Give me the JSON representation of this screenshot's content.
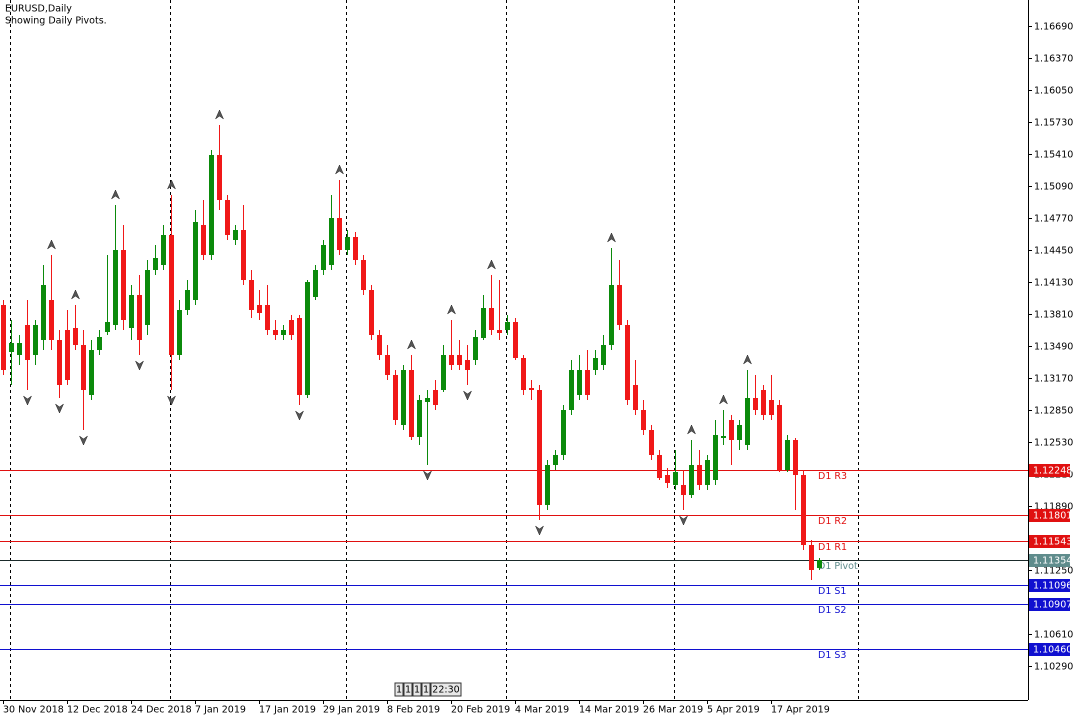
{
  "chart_data": {
    "type": "candlestick",
    "title": "EURUSD,Daily",
    "subtitle": "Showing Daily Pivots.",
    "up_color": "#0b8a0b",
    "down_color": "#f01818",
    "ylim": [
      1.0995,
      1.1695
    ],
    "yticks": [
      {
        "value": 1.1669,
        "label": "1.16690"
      },
      {
        "value": 1.1637,
        "label": "1.16370"
      },
      {
        "value": 1.1605,
        "label": "1.16050"
      },
      {
        "value": 1.1573,
        "label": "1.15730"
      },
      {
        "value": 1.1541,
        "label": "1.15410"
      },
      {
        "value": 1.1509,
        "label": "1.15090"
      },
      {
        "value": 1.1477,
        "label": "1.14770"
      },
      {
        "value": 1.1445,
        "label": "1.14450"
      },
      {
        "value": 1.1413,
        "label": "1.14130"
      },
      {
        "value": 1.1381,
        "label": "1.13810"
      },
      {
        "value": 1.1349,
        "label": "1.13490"
      },
      {
        "value": 1.1317,
        "label": "1.13170"
      },
      {
        "value": 1.1285,
        "label": "1.12850"
      },
      {
        "value": 1.1253,
        "label": "1.12530"
      },
      {
        "value": 1.1221,
        "label": "1.12210"
      },
      {
        "value": 1.1189,
        "label": "1.11890"
      },
      {
        "value": 1.1125,
        "label": "1.11250"
      },
      {
        "value": 1.1061,
        "label": "1.10610"
      },
      {
        "value": 1.1029,
        "label": "1.10290"
      }
    ],
    "pivots": [
      {
        "name": "D1 R3",
        "value": 1.12248,
        "value_label": "1.12248",
        "color": "#e01010"
      },
      {
        "name": "D1 R2",
        "value": 1.11801,
        "value_label": "1.11801",
        "color": "#e01010"
      },
      {
        "name": "D1 R1",
        "value": 1.11543,
        "value_label": "1.11543",
        "color": "#e01010"
      },
      {
        "name": "D1 Pivot",
        "value": 1.11354,
        "value_label": "1.11354",
        "color": "#5f8c8c"
      },
      {
        "name": "D1 S1",
        "value": 1.11096,
        "value_label": "1.11096",
        "color": "#1010d0"
      },
      {
        "name": "D1 S2",
        "value": 1.10907,
        "value_label": "1.10907",
        "color": "#1010d0"
      },
      {
        "name": "D1 S3",
        "value": 1.1046,
        "value_label": "1.10460",
        "color": "#1010d0"
      }
    ],
    "timer_labels": [
      "1",
      "1",
      "1",
      "1",
      "22:30"
    ],
    "categories": [
      "30 Nov 2018",
      null,
      null,
      null,
      null,
      null,
      null,
      null,
      "12 Dec 2018",
      null,
      null,
      null,
      null,
      null,
      null,
      null,
      "24 Dec 2018",
      null,
      null,
      null,
      null,
      null,
      null,
      null,
      "7 Jan 2019",
      null,
      null,
      null,
      null,
      null,
      null,
      null,
      "17 Jan 2019",
      null,
      null,
      null,
      null,
      null,
      null,
      null,
      "29 Jan 2019",
      null,
      null,
      null,
      null,
      null,
      null,
      null,
      "8 Feb 2019",
      null,
      null,
      null,
      null,
      null,
      null,
      null,
      "20 Feb 2019",
      null,
      null,
      null,
      null,
      null,
      null,
      null,
      "4 Mar 2019",
      null,
      null,
      null,
      null,
      null,
      null,
      null,
      "14 Mar 2019",
      null,
      null,
      null,
      null,
      null,
      null,
      null,
      "26 Mar 2019",
      null,
      null,
      null,
      null,
      null,
      null,
      null,
      "5 Apr 2019",
      null,
      null,
      null,
      null,
      null,
      null,
      null,
      "17 Apr 2019",
      null,
      null,
      null,
      null,
      null,
      null
    ],
    "open": [
      1.139,
      1.1343,
      1.134,
      1.137,
      1.134,
      1.1355,
      1.1395,
      1.1355,
      1.1365,
      1.1367,
      1.135,
      1.13,
      1.1345,
      1.1363,
      1.137,
      1.1445,
      1.1367,
      1.14,
      1.137,
      1.1425,
      1.143,
      1.146,
      1.134,
      1.1385,
      1.1395,
      1.147,
      1.144,
      1.154,
      1.1495,
      1.1455,
      1.1465,
      1.1415,
      1.139,
      1.139,
      1.1365,
      1.136,
      1.1375,
      1.1377,
      1.13,
      1.1398,
      1.1425,
      1.143,
      1.1477,
      1.1445,
      1.1458,
      1.1435,
      1.1405,
      1.136,
      1.134,
      1.132,
      1.127,
      1.1325,
      1.1258,
      1.1293,
      1.1305,
      1.1305,
      1.134,
      1.134,
      1.1335,
      1.1335,
      1.1357,
      1.1387,
      1.1365,
      1.1365,
      1.1373,
      1.1337,
      1.1307,
      1.1305,
      1.119,
      1.123,
      1.124,
      1.1285,
      1.13,
      1.1325,
      1.1325,
      1.133,
      1.135,
      1.141,
      1.137,
      1.131,
      1.1285,
      1.1265,
      1.124,
      1.122,
      1.121,
      1.121,
      1.12,
      1.123,
      1.121,
      1.1215,
      1.1257,
      1.1275,
      1.1255,
      1.125,
      1.1297,
      1.1305,
      1.1295,
      1.129,
      1.1225,
      1.1255,
      1.122,
      1.115,
      1.1127
    ],
    "high": [
      1.1395,
      1.1375,
      1.136,
      1.1395,
      1.1375,
      1.143,
      1.144,
      1.1365,
      1.1385,
      1.139,
      1.1365,
      1.1355,
      1.1365,
      1.144,
      1.149,
      1.147,
      1.141,
      1.142,
      1.1435,
      1.145,
      1.147,
      1.15,
      1.1395,
      1.1415,
      1.1485,
      1.1495,
      1.1545,
      1.157,
      1.15,
      1.147,
      1.149,
      1.1425,
      1.1405,
      1.141,
      1.1375,
      1.137,
      1.138,
      1.138,
      1.1415,
      1.143,
      1.1455,
      1.15,
      1.1515,
      1.1465,
      1.1463,
      1.144,
      1.141,
      1.1365,
      1.135,
      1.1325,
      1.133,
      1.134,
      1.13,
      1.1305,
      1.1315,
      1.135,
      1.1375,
      1.1355,
      1.135,
      1.1365,
      1.14,
      1.142,
      1.1415,
      1.138,
      1.1377,
      1.134,
      1.1315,
      1.131,
      1.1235,
      1.1245,
      1.129,
      1.1335,
      1.134,
      1.1345,
      1.1345,
      1.136,
      1.1447,
      1.1435,
      1.1375,
      1.1335,
      1.1295,
      1.127,
      1.1245,
      1.1227,
      1.1245,
      1.1225,
      1.1255,
      1.1245,
      1.124,
      1.1275,
      1.1285,
      1.128,
      1.1275,
      1.1325,
      1.132,
      1.131,
      1.132,
      1.1295,
      1.126,
      1.1257,
      1.1225,
      1.1155,
      1.1137
    ],
    "low": [
      1.132,
      1.131,
      1.133,
      1.1305,
      1.133,
      1.1345,
      1.1345,
      1.1297,
      1.131,
      1.1345,
      1.1265,
      1.1295,
      1.134,
      1.136,
      1.1365,
      1.1365,
      1.1355,
      1.134,
      1.136,
      1.142,
      1.1425,
      1.1305,
      1.1335,
      1.138,
      1.139,
      1.1435,
      1.1435,
      1.1485,
      1.1455,
      1.145,
      1.141,
      1.1377,
      1.1375,
      1.136,
      1.1355,
      1.1355,
      1.1355,
      1.129,
      1.1297,
      1.1395,
      1.142,
      1.1425,
      1.144,
      1.144,
      1.143,
      1.14,
      1.1355,
      1.1335,
      1.1315,
      1.127,
      1.1265,
      1.1255,
      1.125,
      1.123,
      1.1285,
      1.1303,
      1.1325,
      1.1325,
      1.131,
      1.133,
      1.1355,
      1.136,
      1.1355,
      1.136,
      1.1335,
      1.13,
      1.1295,
      1.1175,
      1.1185,
      1.1225,
      1.1235,
      1.128,
      1.1295,
      1.1295,
      1.132,
      1.1325,
      1.1345,
      1.1365,
      1.129,
      1.128,
      1.126,
      1.1235,
      1.1215,
      1.1207,
      1.1205,
      1.1185,
      1.1197,
      1.1205,
      1.1205,
      1.121,
      1.125,
      1.123,
      1.1245,
      1.1245,
      1.128,
      1.1275,
      1.1275,
      1.1223,
      1.1223,
      1.1185,
      1.1145,
      1.1115,
      1.1125
    ],
    "close": [
      1.1325,
      1.1352,
      1.1352,
      1.1335,
      1.137,
      1.141,
      1.1355,
      1.131,
      1.1315,
      1.135,
      1.1305,
      1.1345,
      1.1358,
      1.1373,
      1.1445,
      1.1375,
      1.14,
      1.1355,
      1.1425,
      1.1437,
      1.146,
      1.134,
      1.1385,
      1.1405,
      1.1473,
      1.144,
      1.154,
      1.1495,
      1.146,
      1.1465,
      1.1415,
      1.1385,
      1.1382,
      1.1365,
      1.136,
      1.1365,
      1.136,
      1.13,
      1.1413,
      1.1425,
      1.145,
      1.1477,
      1.1445,
      1.1458,
      1.1435,
      1.1405,
      1.136,
      1.134,
      1.132,
      1.1275,
      1.1325,
      1.1258,
      1.1295,
      1.1297,
      1.129,
      1.134,
      1.133,
      1.133,
      1.1325,
      1.1358,
      1.1387,
      1.1365,
      1.1362,
      1.1373,
      1.1337,
      1.1305,
      1.1305,
      1.119,
      1.123,
      1.124,
      1.1285,
      1.1325,
      1.1325,
      1.13,
      1.1337,
      1.135,
      1.141,
      1.137,
      1.1295,
      1.1285,
      1.1265,
      1.124,
      1.1217,
      1.1212,
      1.1223,
      1.12,
      1.123,
      1.121,
      1.1235,
      1.126,
      1.1259,
      1.1255,
      1.127,
      1.1297,
      1.1285,
      1.128,
      1.128,
      1.1225,
      1.1255,
      1.122,
      1.115,
      1.1125,
      1.1135
    ]
  }
}
